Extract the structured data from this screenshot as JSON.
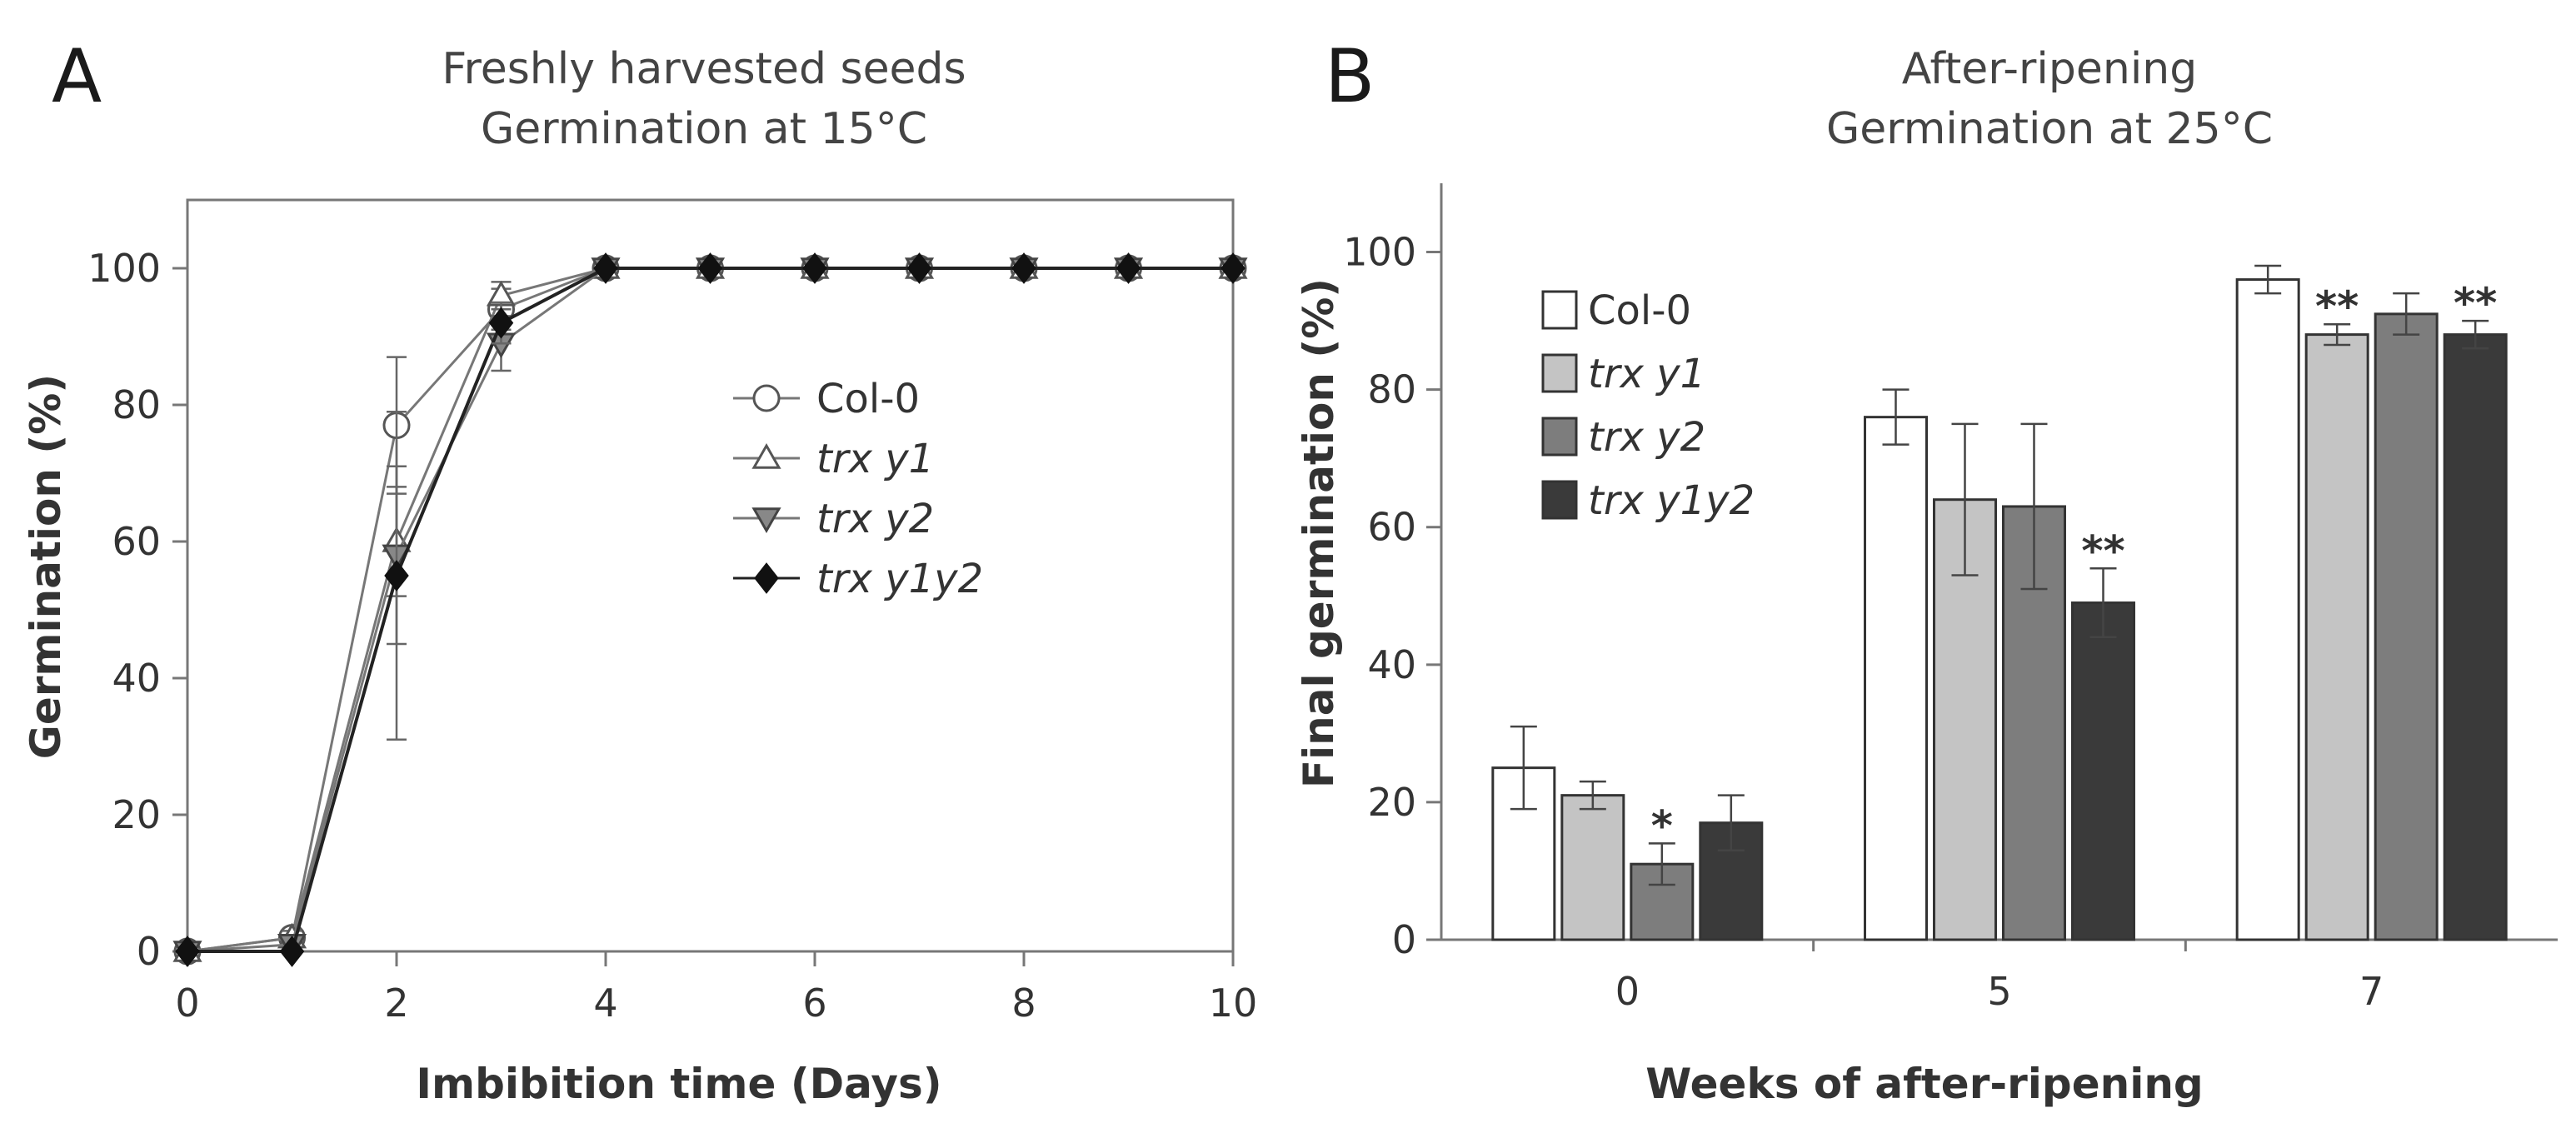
{
  "chart_data": [
    {
      "panel": "A",
      "type": "line",
      "title": [
        "Freshly harvested seeds",
        "Germination at 15°C"
      ],
      "xlabel": "Imbibition time (Days)",
      "ylabel": "Germination (%)",
      "xlim": [
        0,
        10
      ],
      "ylim": [
        0,
        110
      ],
      "xticks": [
        0,
        2,
        4,
        6,
        8,
        10
      ],
      "yticks": [
        0,
        20,
        40,
        60,
        80,
        100
      ],
      "legend": "center-right",
      "series": [
        {
          "name": "Col-0",
          "italic": false,
          "marker": "circle-open",
          "x": [
            0,
            1,
            2,
            3,
            4,
            5,
            6,
            7,
            8,
            9,
            10
          ],
          "y": [
            0,
            2,
            77,
            94,
            100,
            100,
            100,
            100,
            100,
            100,
            100
          ],
          "err": [
            0,
            1,
            10,
            3,
            0,
            0,
            0,
            0,
            0,
            0,
            0
          ]
        },
        {
          "name": "trx y1",
          "italic": true,
          "marker": "triangle-up-open",
          "x": [
            0,
            1,
            2,
            3,
            4,
            5,
            6,
            7,
            8,
            9,
            10
          ],
          "y": [
            0,
            2,
            60,
            96,
            100,
            100,
            100,
            100,
            100,
            100,
            100
          ],
          "err": [
            0,
            1,
            8,
            2,
            0,
            0,
            0,
            0,
            0,
            0,
            0
          ]
        },
        {
          "name": "trx y2",
          "italic": true,
          "marker": "triangle-down-gray",
          "x": [
            0,
            1,
            2,
            3,
            4,
            5,
            6,
            7,
            8,
            9,
            10
          ],
          "y": [
            0,
            1,
            58,
            89,
            100,
            100,
            100,
            100,
            100,
            100,
            100
          ],
          "err": [
            0,
            1,
            13,
            4,
            0,
            0,
            0,
            0,
            0,
            0,
            0
          ]
        },
        {
          "name": "trx y1y2",
          "italic": true,
          "marker": "diamond-filled",
          "x": [
            0,
            1,
            2,
            3,
            4,
            5,
            6,
            7,
            8,
            9,
            10
          ],
          "y": [
            0,
            0,
            55,
            92,
            100,
            100,
            100,
            100,
            100,
            100,
            100
          ],
          "err": [
            0,
            0,
            24,
            3,
            0,
            0,
            0,
            0,
            0,
            0,
            0
          ]
        }
      ]
    },
    {
      "panel": "B",
      "type": "bar",
      "title": [
        "After-ripening",
        "Germination at 25°C"
      ],
      "xlabel": "Weeks of after-ripening",
      "ylabel": "Final germination (%)",
      "categories": [
        "0",
        "5",
        "7"
      ],
      "ylim": [
        0,
        110
      ],
      "yticks": [
        0,
        20,
        40,
        60,
        80,
        100
      ],
      "legend": "top-left",
      "series": [
        {
          "name": "Col-0",
          "italic": false,
          "fill": "#ffffff",
          "values": [
            25,
            76,
            96
          ],
          "err": [
            6,
            4,
            2
          ],
          "sig": [
            "",
            "",
            ""
          ]
        },
        {
          "name": "trx y1",
          "italic": true,
          "fill": "#c4c4c4",
          "values": [
            21,
            64,
            88
          ],
          "err": [
            2,
            11,
            1.5
          ],
          "sig": [
            "",
            "",
            "**"
          ]
        },
        {
          "name": "trx y2",
          "italic": true,
          "fill": "#7d7d7d",
          "values": [
            11,
            63,
            91
          ],
          "err": [
            3,
            12,
            3
          ],
          "sig": [
            "*",
            "",
            ""
          ]
        },
        {
          "name": "trx y1y2",
          "italic": true,
          "fill": "#3a3a3a",
          "values": [
            17,
            49,
            88
          ],
          "err": [
            4,
            5,
            2
          ],
          "sig": [
            "",
            "**",
            "**"
          ]
        }
      ]
    }
  ]
}
